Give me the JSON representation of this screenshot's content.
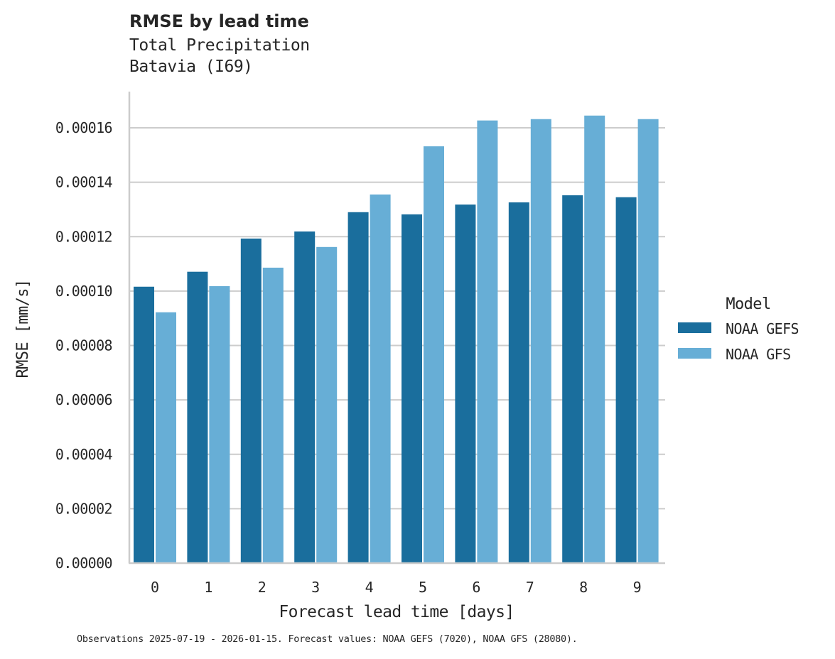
{
  "header": {
    "title": "RMSE by lead time",
    "subtitle_line1": "Total Precipitation",
    "subtitle_line2": "Batavia (I69)"
  },
  "axes": {
    "xlabel": "Forecast lead time [days]",
    "ylabel": "RMSE [mm/s]",
    "yticks": [
      "0.00000",
      "0.00002",
      "0.00004",
      "0.00006",
      "0.00008",
      "0.00010",
      "0.00012",
      "0.00014",
      "0.00016"
    ],
    "xticks": [
      "0",
      "1",
      "2",
      "3",
      "4",
      "5",
      "6",
      "7",
      "8",
      "9"
    ]
  },
  "legend": {
    "title": "Model",
    "items": [
      {
        "label": "NOAA GEFS",
        "color": "#1a6e9d"
      },
      {
        "label": "NOAA GFS",
        "color": "#67aed6"
      }
    ]
  },
  "caption": "Observations 2025-07-19 - 2026-01-15. Forecast values: NOAA GEFS (7020), NOAA GFS (28080).",
  "chart_data": {
    "type": "bar",
    "title": "RMSE by lead time",
    "subtitle": "Total Precipitation / Batavia (I69)",
    "xlabel": "Forecast lead time [days]",
    "ylabel": "RMSE [mm/s]",
    "categories": [
      "0",
      "1",
      "2",
      "3",
      "4",
      "5",
      "6",
      "7",
      "8",
      "9"
    ],
    "series": [
      {
        "name": "NOAA GEFS",
        "color": "#1a6e9d",
        "values": [
          0.0001016,
          0.0001071,
          0.0001193,
          0.0001219,
          0.000129,
          0.0001282,
          0.0001318,
          0.0001326,
          0.0001352,
          0.0001345
        ]
      },
      {
        "name": "NOAA GFS",
        "color": "#67aed6",
        "values": [
          9.22e-05,
          0.0001018,
          0.0001086,
          0.0001162,
          0.0001355,
          0.0001532,
          0.0001627,
          0.0001632,
          0.0001645,
          0.0001632
        ]
      }
    ],
    "ylim": [
      0,
      0.000173
    ],
    "yticks": [
      0,
      2e-05,
      4e-05,
      6e-05,
      8e-05,
      0.0001,
      0.00012,
      0.00014,
      0.00016
    ],
    "grid": "horizontal",
    "legend_position": "right",
    "legend_title": "Model"
  }
}
